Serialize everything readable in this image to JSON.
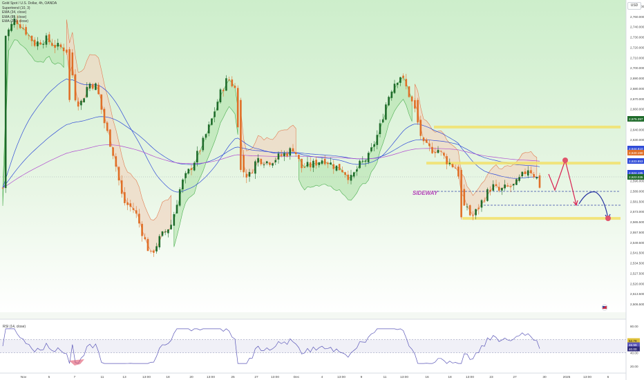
{
  "legend": {
    "title": "Gold Spot / U.S. Dollar, 4h, OANDA",
    "lines": [
      "Supertrend (10, 3)",
      "EMA (34, close)",
      "EMA (89, close)",
      "EMA (200, close)"
    ]
  },
  "currency": "USD",
  "annotation": {
    "sideway": "SIDEWAY"
  },
  "rsi": {
    "label": "RSI (14, close)",
    "levels": [
      "80.00",
      "60.00",
      "40.00",
      "20.00"
    ],
    "markers": [
      "52.78",
      "46.99",
      "40.00"
    ]
  },
  "colors": {
    "bg_top": "#cfeecd",
    "up": "#1e6b2a",
    "down": "#e06f27",
    "ema_blue": "#2f4bd8",
    "ema_mag": "#b04bd0",
    "zone": "#f2e06a",
    "red_arrow": "#d92050",
    "blue_arrow": "#2430a0",
    "sideway": "#b23fb7"
  },
  "chart_data": {
    "type": "candlestick",
    "symbol": "Gold Spot / U.S. Dollar, 4h, OANDA",
    "y_ticks": [
      "2,770.000",
      "2,760.000",
      "2,740.000",
      "2,730.000",
      "2,720.000",
      "2,710.000",
      "2,700.000",
      "2,690.000",
      "2,680.000",
      "2,670.000",
      "2,660.000",
      "2,650.000",
      "2,640.000",
      "2,630.000",
      "2,620.000",
      "2,612.000",
      "2,604.000",
      "2,596.000",
      "2,589.000",
      "2,581.500",
      "2,573.000",
      "2,565.500",
      "2,557.500",
      "2,549.500",
      "2,541.500",
      "2,534.500",
      "2,527.500",
      "2,520.000",
      "2,513.500",
      "2,506.500"
    ],
    "price_badges": [
      {
        "value": "2,675.397",
        "color": "#1e6b2a"
      },
      {
        "value": "2,644.610",
        "color": "#2f4bd8"
      },
      {
        "value": "2,640.190",
        "color": "#e06f27"
      },
      {
        "value": "2,633.853",
        "color": "#2f4bd8"
      },
      {
        "value": "2,624.185",
        "color": "#2f4bd8"
      },
      {
        "value": "2,622.035",
        "color": "#1e6b2a"
      }
    ],
    "x_labels": [
      "Nov",
      "5",
      "7",
      "11",
      "13",
      "13:00",
      "18",
      "20",
      "13:00",
      "25",
      "27",
      "13:00",
      "Dec",
      "4",
      "13:00",
      "9",
      "11",
      "13:00",
      "16",
      "18",
      "13:00",
      "23",
      "27",
      "30",
      "2025",
      "13:00",
      "6"
    ],
    "price_range": [
      2506,
      2775
    ],
    "resistance_zones": [
      2666,
      2634,
      2585
    ],
    "dashed_levels": [
      2608,
      2597
    ]
  }
}
